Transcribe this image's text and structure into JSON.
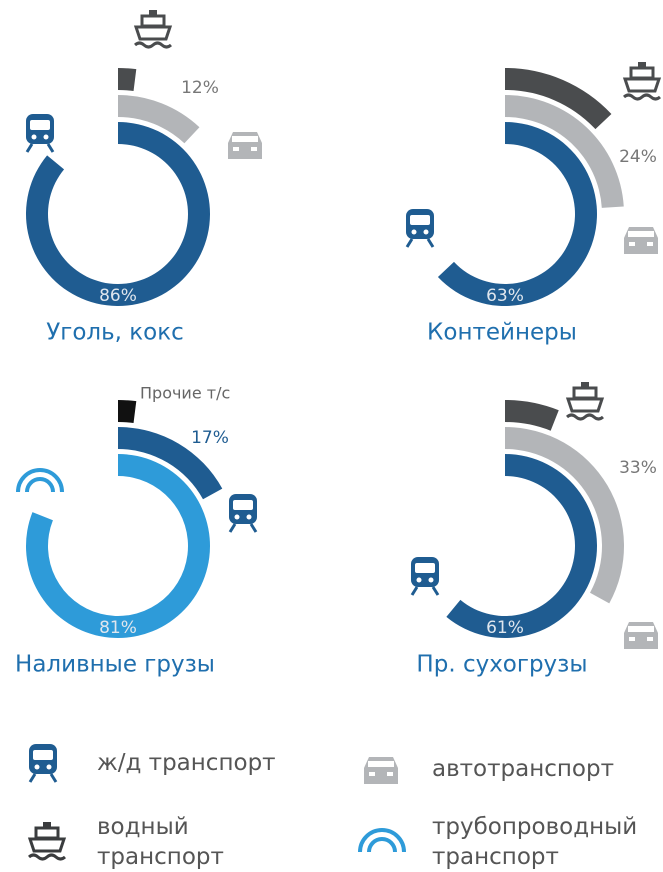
{
  "chart_data": [
    {
      "type": "radial_bar",
      "title": "Уголь, кокс",
      "values": [
        86,
        12,
        2
      ],
      "value_labels": [
        "86%",
        "12%",
        null
      ],
      "colors": [
        "#1f5c91",
        "#b3b5b8",
        "#4a4c4e"
      ],
      "ylim": [
        0,
        100
      ]
    },
    {
      "type": "radial_bar",
      "title": "Контейнеры",
      "values": [
        63,
        24,
        13
      ],
      "value_labels": [
        "63%",
        "24%",
        null
      ],
      "colors": [
        "#1f5c91",
        "#b3b5b8",
        "#4a4c4e"
      ],
      "ylim": [
        0,
        100
      ]
    },
    {
      "type": "radial_bar",
      "title": "Наливные грузы",
      "values": [
        81,
        17,
        2
      ],
      "value_labels": [
        "81%",
        "17%",
        null
      ],
      "colors": [
        "#2e9bd9",
        "#1f5c91",
        "#111111"
      ],
      "ylim": [
        0,
        100
      ],
      "annotation": "Прочие т/с"
    },
    {
      "type": "radial_bar",
      "title": "Пр. сухогрузы",
      "values": [
        61,
        33,
        6
      ],
      "value_labels": [
        "61%",
        "33%",
        null
      ],
      "colors": [
        "#1f5c91",
        "#b3b5b8",
        "#4a4c4e"
      ],
      "ylim": [
        0,
        100
      ]
    }
  ],
  "legend": [
    {
      "label": "ж/д транспорт",
      "color": "#1f5c91"
    },
    {
      "label": "автотранспорт",
      "color": "#b3b5b8"
    },
    {
      "label": "водный транспорт",
      "color": "#3a3c3e"
    },
    {
      "label": "трубопроводный транспорт",
      "color": "#2e9bd9"
    }
  ]
}
